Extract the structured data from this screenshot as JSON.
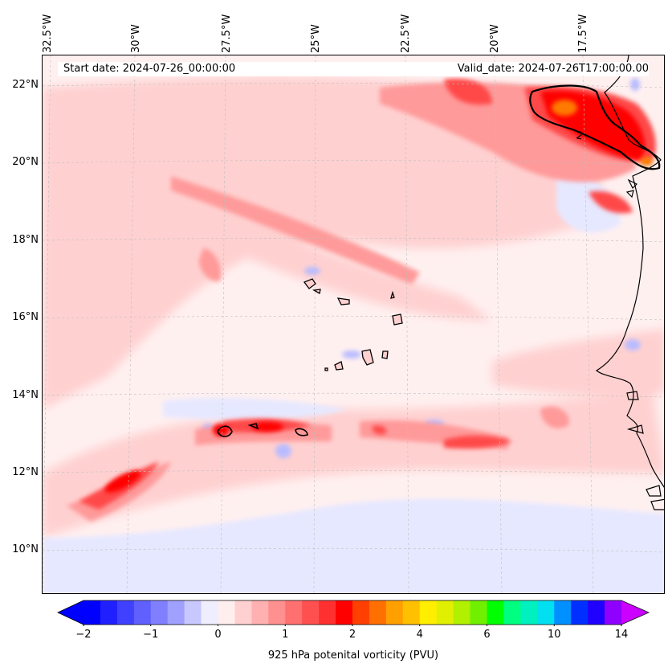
{
  "map": {
    "start_date": "Start date: 2024-07-26_00:00:00",
    "valid_date": "Valid_date: 2024-07-26T17:00:00.00",
    "lon_labels": [
      "32.5°W",
      "30°W",
      "27.5°W",
      "25°W",
      "22.5°W",
      "20°W",
      "17.5°W"
    ],
    "lat_labels": [
      "22°N",
      "20°N",
      "18°N",
      "16°N",
      "14°N",
      "12°N",
      "10°N"
    ],
    "contour_label": "2",
    "colors": {
      "background_field": "#fff0f0",
      "light_red": "#ffd0d0",
      "medium_red": "#ff9a9a",
      "strong_red": "#ff4040",
      "deep_red": "#ff0000",
      "orange": "#ff7a00",
      "light_blue": "#e6e8ff",
      "blue": "#b8bcff",
      "coastline": "#000000"
    }
  },
  "colorbar": {
    "label": "925 hPa potenital vorticity (PVU)",
    "ticks": [
      "−2",
      "−1",
      "0",
      "1",
      "2",
      "4",
      "6",
      "10",
      "14"
    ],
    "colors": [
      "#0000ff",
      "#2020ff",
      "#4040ff",
      "#6060ff",
      "#8080ff",
      "#a0a0ff",
      "#c8c8ff",
      "#eeeeff",
      "#ffeeee",
      "#ffd0d0",
      "#ffb0b0",
      "#ff9090",
      "#ff7070",
      "#ff5050",
      "#ff3030",
      "#ff0000",
      "#ff4000",
      "#ff7000",
      "#ffa000",
      "#ffc000",
      "#ffee00",
      "#e0f000",
      "#b0f000",
      "#70f000",
      "#00ff00",
      "#00ff80",
      "#00f0c0",
      "#00e0f0",
      "#0090ff",
      "#0030ff",
      "#2000ff",
      "#9000ff"
    ],
    "extend_low_color": "#0000ff",
    "extend_high_color": "#cc00ff"
  }
}
